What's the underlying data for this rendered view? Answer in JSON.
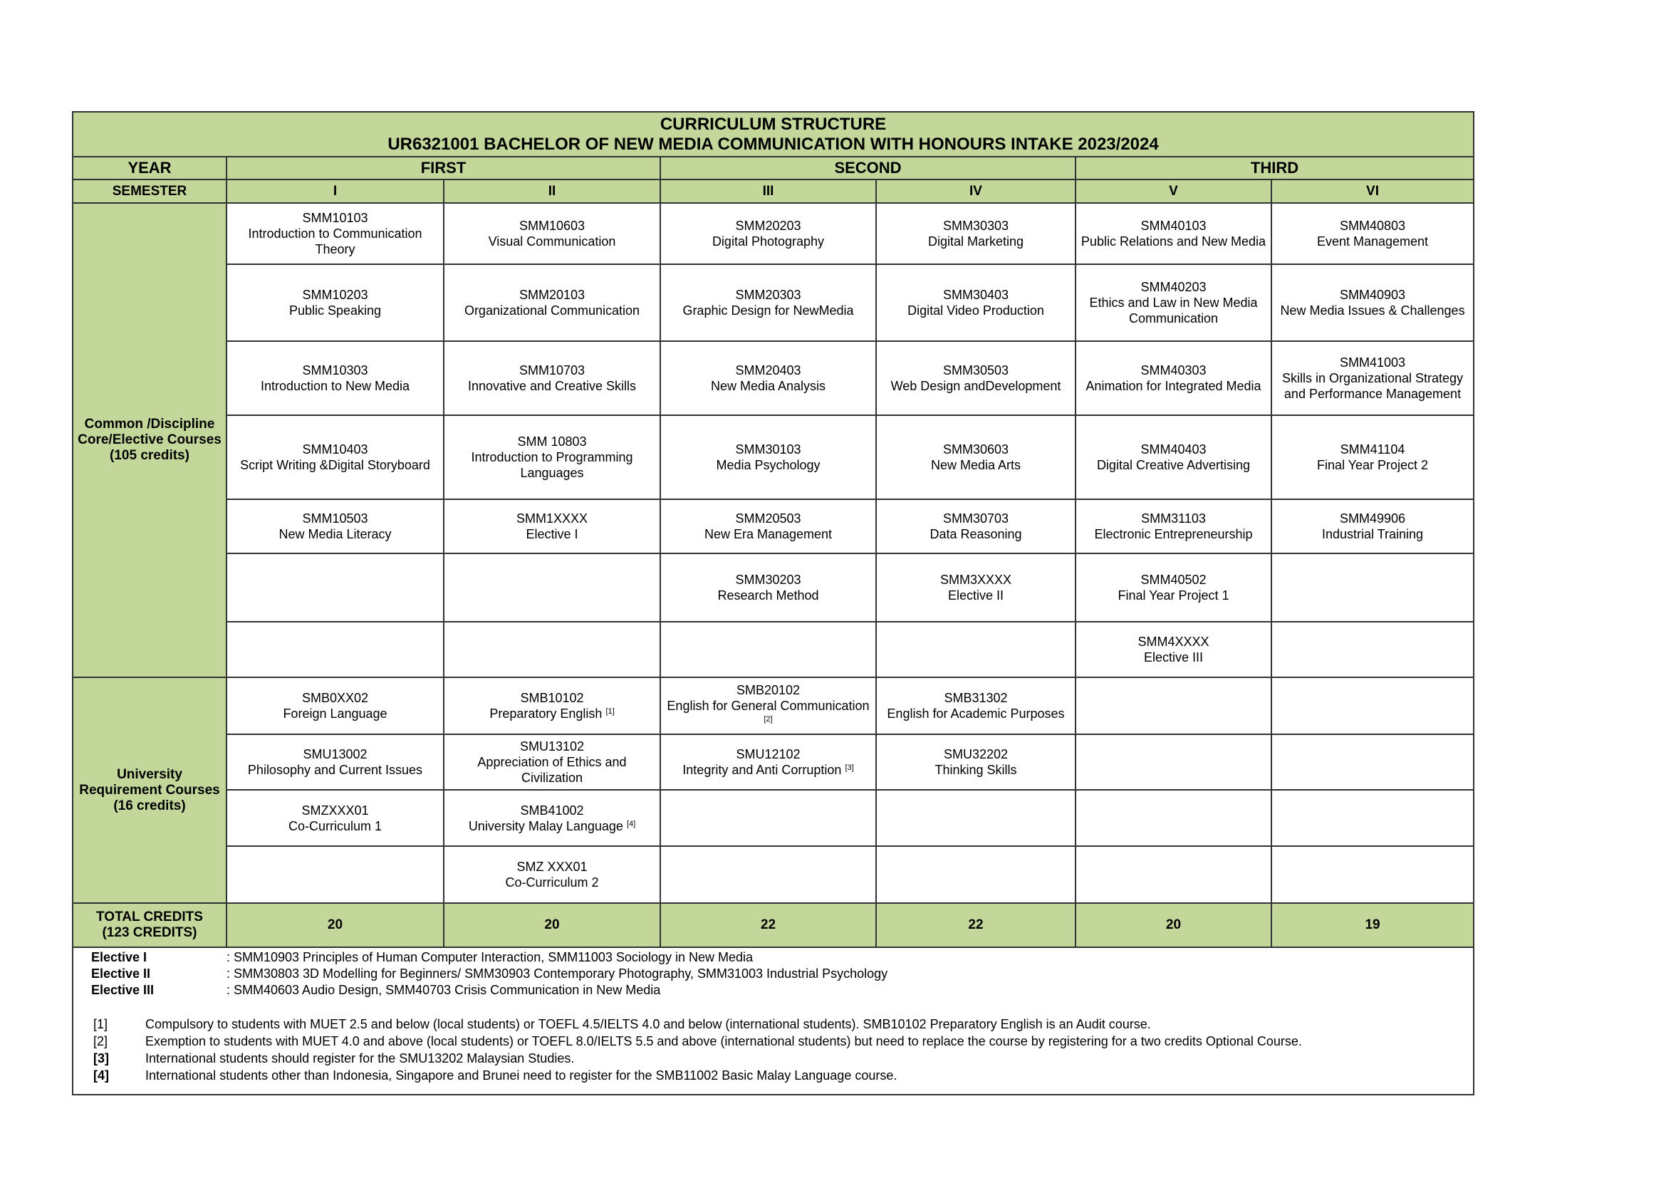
{
  "title": "CURRICULUM STRUCTURE",
  "subtitle": "UR6321001 BACHELOR OF NEW MEDIA COMMUNICATION WITH HONOURS INTAKE 2023/2024",
  "colors": {
    "header_green": "#c4d79b",
    "border": "#333333"
  },
  "year_label": "YEAR",
  "years": [
    "FIRST",
    "SECOND",
    "THIRD"
  ],
  "semester_label": "SEMESTER",
  "semesters": [
    "I",
    "II",
    "III",
    "IV",
    "V",
    "VI"
  ],
  "groups": [
    {
      "label_lines": [
        "Common /Discipline",
        "Core/Elective Courses",
        "(105 credits)"
      ],
      "rows": [
        [
          {
            "code": "SMM10103",
            "name": "Introduction to Communication Theory"
          },
          {
            "code": "SMM10603",
            "name": "Visual Communication"
          },
          {
            "code": "SMM20203",
            "name": "Digital Photography"
          },
          {
            "code": "SMM30303",
            "name": "Digital Marketing"
          },
          {
            "code": "SMM40103",
            "name": "Public Relations and New Media"
          },
          {
            "code": "SMM40803",
            "name": "Event Management"
          }
        ],
        [
          {
            "code": "SMM10203",
            "name": "Public Speaking"
          },
          {
            "code": "SMM20103",
            "name": "Organizational Communication"
          },
          {
            "code": "SMM20303",
            "name": "Graphic Design for NewMedia"
          },
          {
            "code": "SMM30403",
            "name": "Digital Video Production"
          },
          {
            "code": "SMM40203",
            "name": "Ethics and Law in New Media Communication"
          },
          {
            "code": "SMM40903",
            "name": "New Media Issues & Challenges"
          }
        ],
        [
          {
            "code": "SMM10303",
            "name": "Introduction to New Media"
          },
          {
            "code": "SMM10703",
            "name": "Innovative and Creative Skills"
          },
          {
            "code": "SMM20403",
            "name": "New Media Analysis"
          },
          {
            "code": "SMM30503",
            "name": "Web Design andDevelopment"
          },
          {
            "code": "SMM40303",
            "name": "Animation for Integrated Media"
          },
          {
            "code": "SMM41003",
            "name": "Skills in Organizational Strategy and Performance Management"
          }
        ],
        [
          {
            "code": "SMM10403",
            "name": "Script Writing &Digital Storyboard"
          },
          {
            "code": "SMM 10803",
            "name": "Introduction to Programming Languages"
          },
          {
            "code": "SMM30103",
            "name": "Media Psychology"
          },
          {
            "code": "SMM30603",
            "name": "New Media Arts"
          },
          {
            "code": "SMM40403",
            "name": "Digital Creative Advertising"
          },
          {
            "code": "SMM41104",
            "name": "Final Year Project 2"
          }
        ],
        [
          {
            "code": "SMM10503",
            "name": "New  Media Literacy"
          },
          {
            "code": "SMM1XXXX",
            "name": "Elective I"
          },
          {
            "code": "SMM20503",
            "name": "New Era Management"
          },
          {
            "code": "SMM30703",
            "name": "Data Reasoning"
          },
          {
            "code": "SMM31103",
            "name": "Electronic Entrepreneurship"
          },
          {
            "code": "SMM49906",
            "name": "Industrial Training"
          }
        ],
        [
          {},
          {},
          {
            "code": "SMM30203",
            "name": "Research Method"
          },
          {
            "code": "SMM3XXXX",
            "name": "Elective II"
          },
          {
            "code": "SMM40502",
            "name": "Final Year Project 1"
          },
          {}
        ],
        [
          {},
          {},
          {},
          {},
          {
            "code": "SMM4XXXX",
            "name": "Elective III"
          },
          {}
        ]
      ]
    },
    {
      "label_lines": [
        "University",
        "Requirement Courses",
        "(16 credits)"
      ],
      "rows": [
        [
          {
            "code": "SMB0XX02",
            "name": "Foreign Language"
          },
          {
            "code": "SMB10102",
            "name": "Preparatory English",
            "sup": "[1]"
          },
          {
            "code": "SMB20102",
            "name": "English for General Communication",
            "sup": "[2]"
          },
          {
            "code": "SMB31302",
            "name": "English for Academic Purposes"
          },
          {},
          {}
        ],
        [
          {
            "code": "SMU13002",
            "name": "Philosophy and Current Issues"
          },
          {
            "code": "SMU13102",
            "name": "Appreciation of Ethics and Civilization"
          },
          {
            "code": "SMU12102",
            "name": "Integrity and Anti Corruption",
            "sup": "[3]"
          },
          {
            "code": "SMU32202",
            "name": "Thinking Skills"
          },
          {},
          {}
        ],
        [
          {
            "code": "SMZXXX01",
            "name": "Co-Curriculum 1"
          },
          {
            "code": "SMB41002",
            "name": "University Malay Language",
            "sup": "[4]"
          },
          {},
          {},
          {},
          {}
        ],
        [
          {},
          {
            "code": "SMZ XXX01",
            "name": "Co-Curriculum 2"
          },
          {},
          {},
          {},
          {}
        ]
      ]
    }
  ],
  "total": {
    "label_lines": [
      "TOTAL CREDITS",
      "(123 CREDITS)"
    ],
    "values": [
      "20",
      "20",
      "22",
      "22",
      "20",
      "19"
    ]
  },
  "electives": [
    {
      "label": "Elective I",
      "text": ": SMM10903 Principles of Human Computer Interaction, SMM11003 Sociology in New Media"
    },
    {
      "label": "Elective II",
      "text": ": SMM30803 3D Modelling for Beginners/ SMM30903 Contemporary Photography, SMM31003 Industrial Psychology"
    },
    {
      "label": "Elective III",
      "text": ": SMM40603 Audio Design, SMM40703 Crisis Communication in New Media"
    }
  ],
  "footnotes": [
    {
      "mark": "[1]",
      "text": "Compulsory to students with MUET 2.5 and below (local students) or TOEFL 4.5/IELTS 4.0 and below (international students). SMB10102 Preparatory English is an Audit course."
    },
    {
      "mark": "[2]",
      "text": "Exemption to students with MUET 4.0 and above (local students) or TOEFL 8.0/IELTS 5.5 and above (international students) but need to replace the course by registering for a two credits Optional Course."
    },
    {
      "mark": "[3]",
      "text": "International students should register for the SMU13202 Malaysian Studies."
    },
    {
      "mark": "[4]",
      "text": "International students other than Indonesia, Singapore and Brunei need to register for the SMB11002 Basic Malay Language course."
    }
  ]
}
